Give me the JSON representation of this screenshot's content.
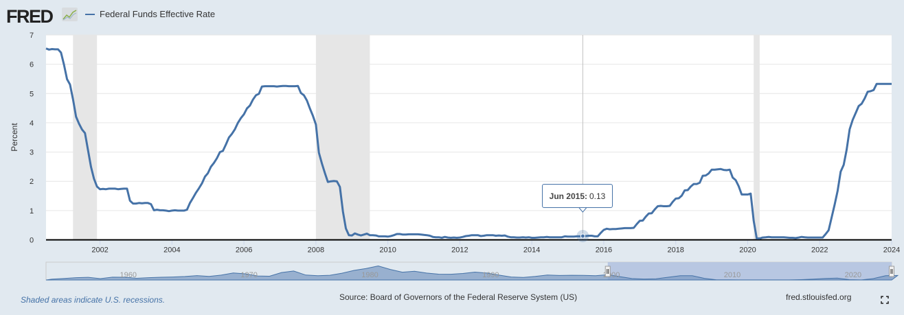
{
  "header": {
    "logo": "FRED",
    "logo_icon": "chart-line-icon",
    "legend_label": "Federal Funds Effective Rate"
  },
  "tooltip": {
    "date": "Jun 2015:",
    "value": "0.13"
  },
  "footer": {
    "note": "Shaded areas indicate U.S. recessions.",
    "source": "Source: Board of Governors of the Federal Reserve System (US)",
    "site": "fred.stlouisfed.org",
    "fullscreen_icon": "fullscreen-icon"
  },
  "colors": {
    "line": "#4572a7",
    "recession": "#e6e6e6",
    "background": "#e1e9f0",
    "navigator_fill": "#7f9cc4",
    "navigator_selection": "#b8c7e2"
  },
  "chart_data": {
    "type": "line",
    "title": "",
    "ylabel": "Percent",
    "xlabel": "",
    "ylim": [
      0,
      7
    ],
    "xlim": [
      "2000-07",
      "2024-01"
    ],
    "yticks": [
      "0",
      "1",
      "2",
      "3",
      "4",
      "5",
      "6",
      "7"
    ],
    "xticks": [
      "2002",
      "2004",
      "2006",
      "2008",
      "2010",
      "2012",
      "2014",
      "2016",
      "2018",
      "2020",
      "2022",
      "2024"
    ],
    "grid": true,
    "legend": "top-left",
    "recessions": [
      [
        "2001-04",
        "2001-11"
      ],
      [
        "2008-01",
        "2009-06"
      ],
      [
        "2020-03",
        "2020-04"
      ]
    ],
    "series": [
      {
        "name": "Federal Funds Effective Rate",
        "start": "2000-07",
        "frequency": "monthly",
        "values": [
          6.54,
          6.5,
          6.52,
          6.51,
          6.51,
          6.4,
          5.98,
          5.49,
          5.31,
          4.8,
          4.21,
          3.97,
          3.77,
          3.65,
          3.07,
          2.49,
          2.09,
          1.82,
          1.73,
          1.74,
          1.73,
          1.75,
          1.75,
          1.75,
          1.73,
          1.74,
          1.75,
          1.75,
          1.34,
          1.24,
          1.24,
          1.26,
          1.25,
          1.26,
          1.26,
          1.22,
          1.01,
          1.03,
          1.01,
          1.01,
          1.0,
          0.98,
          1.0,
          1.01,
          1.0,
          1.0,
          1.0,
          1.03,
          1.26,
          1.43,
          1.61,
          1.76,
          1.93,
          2.16,
          2.28,
          2.5,
          2.63,
          2.79,
          3.0,
          3.04,
          3.26,
          3.5,
          3.62,
          3.78,
          4.0,
          4.16,
          4.29,
          4.49,
          4.59,
          4.79,
          4.94,
          4.99,
          5.24,
          5.25,
          5.25,
          5.25,
          5.25,
          5.24,
          5.25,
          5.26,
          5.26,
          5.25,
          5.25,
          5.25,
          5.26,
          5.02,
          4.94,
          4.76,
          4.49,
          4.24,
          3.94,
          2.98,
          2.61,
          2.28,
          1.98,
          2.0,
          2.01,
          2.0,
          1.81,
          0.97,
          0.39,
          0.16,
          0.15,
          0.22,
          0.18,
          0.15,
          0.18,
          0.21,
          0.16,
          0.16,
          0.15,
          0.12,
          0.12,
          0.12,
          0.11,
          0.13,
          0.16,
          0.2,
          0.2,
          0.18,
          0.18,
          0.19,
          0.19,
          0.19,
          0.19,
          0.18,
          0.17,
          0.16,
          0.14,
          0.1,
          0.09,
          0.09,
          0.07,
          0.1,
          0.08,
          0.07,
          0.08,
          0.07,
          0.08,
          0.1,
          0.13,
          0.14,
          0.16,
          0.16,
          0.16,
          0.13,
          0.14,
          0.16,
          0.16,
          0.16,
          0.14,
          0.15,
          0.14,
          0.15,
          0.11,
          0.09,
          0.09,
          0.08,
          0.08,
          0.09,
          0.08,
          0.09,
          0.07,
          0.07,
          0.08,
          0.09,
          0.09,
          0.1,
          0.09,
          0.09,
          0.09,
          0.09,
          0.09,
          0.12,
          0.11,
          0.11,
          0.11,
          0.12,
          0.12,
          0.13,
          0.13,
          0.14,
          0.14,
          0.12,
          0.12,
          0.24,
          0.34,
          0.38,
          0.36,
          0.37,
          0.37,
          0.38,
          0.39,
          0.4,
          0.4,
          0.4,
          0.41,
          0.54,
          0.65,
          0.66,
          0.79,
          0.9,
          0.91,
          1.04,
          1.15,
          1.16,
          1.15,
          1.15,
          1.16,
          1.3,
          1.41,
          1.42,
          1.51,
          1.69,
          1.7,
          1.82,
          1.91,
          1.91,
          1.95,
          2.19,
          2.2,
          2.27,
          2.4,
          2.4,
          2.41,
          2.42,
          2.39,
          2.38,
          2.4,
          2.13,
          2.04,
          1.83,
          1.55,
          1.55,
          1.55,
          1.58,
          0.65,
          0.05,
          0.05,
          0.08,
          0.09,
          0.1,
          0.09,
          0.09,
          0.09,
          0.09,
          0.09,
          0.08,
          0.07,
          0.07,
          0.06,
          0.08,
          0.1,
          0.09,
          0.08,
          0.08,
          0.08,
          0.08,
          0.08,
          0.08,
          0.2,
          0.33,
          0.77,
          1.21,
          1.68,
          2.33,
          2.56,
          3.08,
          3.78,
          4.1,
          4.33,
          4.57,
          4.65,
          4.83,
          5.06,
          5.08,
          5.12,
          5.33,
          5.33,
          5.33,
          5.33,
          5.33,
          5.33
        ]
      }
    ],
    "highlight": {
      "x": "2015-06",
      "y": 0.13
    },
    "navigator": {
      "xticks": [
        "1960",
        "1970",
        "1980",
        "1990",
        "2000",
        "2010",
        "2020"
      ],
      "selection": [
        "2000-07",
        "2024-01"
      ],
      "start_year": 1954,
      "annual_values": [
        1.0,
        1.8,
        2.7,
        3.1,
        1.6,
        3.3,
        3.2,
        2.0,
        2.7,
        3.2,
        3.5,
        4.1,
        5.1,
        4.2,
        5.7,
        8.2,
        7.2,
        4.7,
        4.4,
        8.7,
        10.5,
        5.8,
        5.0,
        5.5,
        7.9,
        11.2,
        13.4,
        16.4,
        12.3,
        9.1,
        10.2,
        8.1,
        6.8,
        6.7,
        7.6,
        9.2,
        8.1,
        5.7,
        3.5,
        3.0,
        4.2,
        5.8,
        5.3,
        5.5,
        5.4,
        5.0,
        6.2,
        3.9,
        1.7,
        1.1,
        1.4,
        3.2,
        5.0,
        5.0,
        1.9,
        0.2,
        0.2,
        0.1,
        0.1,
        0.1,
        0.1,
        0.1,
        0.4,
        1.0,
        1.8,
        2.2,
        0.4,
        0.1,
        1.7,
        5.0,
        5.3
      ]
    }
  }
}
